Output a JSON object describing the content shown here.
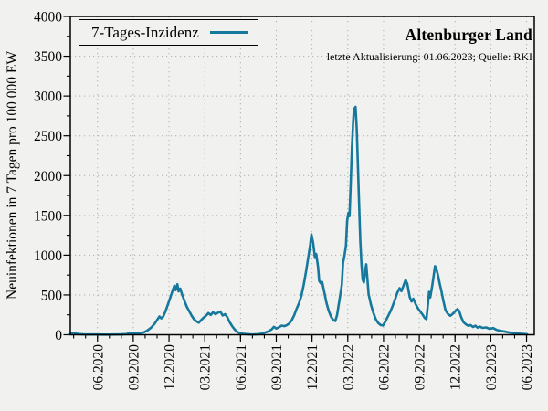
{
  "title": "Altenburger Land",
  "subtitle": "letzte Aktualisierung: 01.06.2023; Quelle: RKI",
  "legend": {
    "label": "7-Tages-Inzidenz"
  },
  "colors": {
    "line": "#15789c",
    "background": "#f1f1ef",
    "grid": "#b0b0b0",
    "frame": "#000000",
    "text": "#000000"
  },
  "chart_data": {
    "type": "line",
    "title": "Altenburger Land",
    "subtitle": "letzte Aktualisierung: 01.06.2023; Quelle: RKI",
    "xlabel": "",
    "ylabel": "Neuinfektionen in 7 Tagen pro 100 000 EW",
    "legend_entries": [
      "7-Tages-Inzidenz"
    ],
    "legend_position": "top-left",
    "grid": "dotted, at major ticks of both axes",
    "ylim": [
      0,
      4000
    ],
    "y_major_ticks": [
      0,
      500,
      1000,
      1500,
      2000,
      2500,
      3000,
      3500,
      4000
    ],
    "y_minor_tick_step": 250,
    "x_unit": "months since 2020-06-01",
    "xlim_t": [
      -2.28,
      36.65
    ],
    "x_minor_tick_step_months": 1,
    "x_tick_labels": [
      {
        "t": 0,
        "label": "06.2020"
      },
      {
        "t": 3,
        "label": "09.2020"
      },
      {
        "t": 6,
        "label": "12.2020"
      },
      {
        "t": 9,
        "label": "03.2021"
      },
      {
        "t": 12,
        "label": "06.2021"
      },
      {
        "t": 15,
        "label": "09.2021"
      },
      {
        "t": 18,
        "label": "12.2021"
      },
      {
        "t": 21,
        "label": "03.2022"
      },
      {
        "t": 24,
        "label": "06.2022"
      },
      {
        "t": 27,
        "label": "09.2022"
      },
      {
        "t": 30,
        "label": "12.2022"
      },
      {
        "t": 33,
        "label": "03.2023"
      },
      {
        "t": 36,
        "label": "06.2023"
      }
    ],
    "series": [
      {
        "name": "7-Tages-Inzidenz",
        "color": "#15789c",
        "points": [
          [
            -2.3,
            8
          ],
          [
            -2.15,
            20
          ],
          [
            -2.0,
            24
          ],
          [
            -1.8,
            14
          ],
          [
            -1.5,
            8
          ],
          [
            -1.2,
            5
          ],
          [
            -0.8,
            4
          ],
          [
            -0.4,
            3
          ],
          [
            0,
            3
          ],
          [
            0.5,
            2
          ],
          [
            1,
            2
          ],
          [
            1.5,
            3
          ],
          [
            2,
            5
          ],
          [
            2.4,
            8
          ],
          [
            2.7,
            18
          ],
          [
            3.0,
            22
          ],
          [
            3.3,
            16
          ],
          [
            3.6,
            22
          ],
          [
            3.9,
            30
          ],
          [
            4.2,
            55
          ],
          [
            4.5,
            90
          ],
          [
            4.8,
            140
          ],
          [
            5.0,
            185
          ],
          [
            5.2,
            230
          ],
          [
            5.35,
            205
          ],
          [
            5.5,
            225
          ],
          [
            5.7,
            290
          ],
          [
            5.9,
            375
          ],
          [
            6.1,
            465
          ],
          [
            6.3,
            555
          ],
          [
            6.45,
            615
          ],
          [
            6.55,
            560
          ],
          [
            6.7,
            635
          ],
          [
            6.8,
            545
          ],
          [
            6.95,
            580
          ],
          [
            7.1,
            505
          ],
          [
            7.3,
            425
          ],
          [
            7.5,
            350
          ],
          [
            7.7,
            295
          ],
          [
            7.9,
            240
          ],
          [
            8.1,
            195
          ],
          [
            8.3,
            168
          ],
          [
            8.5,
            152
          ],
          [
            8.7,
            185
          ],
          [
            8.9,
            215
          ],
          [
            9.1,
            238
          ],
          [
            9.3,
            272
          ],
          [
            9.5,
            248
          ],
          [
            9.7,
            282
          ],
          [
            9.9,
            258
          ],
          [
            10.1,
            276
          ],
          [
            10.3,
            292
          ],
          [
            10.5,
            242
          ],
          [
            10.7,
            258
          ],
          [
            10.9,
            218
          ],
          [
            11.1,
            155
          ],
          [
            11.3,
            108
          ],
          [
            11.5,
            68
          ],
          [
            11.7,
            38
          ],
          [
            11.9,
            22
          ],
          [
            12.2,
            13
          ],
          [
            12.5,
            8
          ],
          [
            12.8,
            5
          ],
          [
            13.1,
            4
          ],
          [
            13.4,
            7
          ],
          [
            13.7,
            12
          ],
          [
            14.0,
            24
          ],
          [
            14.3,
            40
          ],
          [
            14.6,
            65
          ],
          [
            14.8,
            100
          ],
          [
            15.0,
            78
          ],
          [
            15.2,
            92
          ],
          [
            15.45,
            115
          ],
          [
            15.7,
            108
          ],
          [
            15.9,
            122
          ],
          [
            16.1,
            142
          ],
          [
            16.3,
            185
          ],
          [
            16.5,
            245
          ],
          [
            16.7,
            325
          ],
          [
            16.9,
            395
          ],
          [
            17.1,
            485
          ],
          [
            17.3,
            625
          ],
          [
            17.5,
            795
          ],
          [
            17.7,
            985
          ],
          [
            17.85,
            1135
          ],
          [
            17.95,
            1260
          ],
          [
            18.1,
            1150
          ],
          [
            18.25,
            965
          ],
          [
            18.35,
            1015
          ],
          [
            18.5,
            855
          ],
          [
            18.6,
            675
          ],
          [
            18.75,
            645
          ],
          [
            18.85,
            662
          ],
          [
            19.0,
            555
          ],
          [
            19.2,
            408
          ],
          [
            19.4,
            300
          ],
          [
            19.6,
            225
          ],
          [
            19.8,
            182
          ],
          [
            19.95,
            172
          ],
          [
            20.1,
            245
          ],
          [
            20.3,
            430
          ],
          [
            20.5,
            630
          ],
          [
            20.6,
            905
          ],
          [
            20.7,
            975
          ],
          [
            20.85,
            1120
          ],
          [
            20.95,
            1430
          ],
          [
            21.05,
            1530
          ],
          [
            21.15,
            1490
          ],
          [
            21.25,
            1900
          ],
          [
            21.35,
            2340
          ],
          [
            21.45,
            2680
          ],
          [
            21.52,
            2845
          ],
          [
            21.58,
            2760
          ],
          [
            21.65,
            2865
          ],
          [
            21.75,
            2590
          ],
          [
            21.85,
            2120
          ],
          [
            21.95,
            1640
          ],
          [
            22.05,
            1180
          ],
          [
            22.15,
            880
          ],
          [
            22.25,
            690
          ],
          [
            22.35,
            655
          ],
          [
            22.45,
            790
          ],
          [
            22.55,
            885
          ],
          [
            22.65,
            695
          ],
          [
            22.75,
            510
          ],
          [
            22.95,
            375
          ],
          [
            23.15,
            275
          ],
          [
            23.35,
            195
          ],
          [
            23.55,
            148
          ],
          [
            23.75,
            122
          ],
          [
            23.95,
            116
          ],
          [
            24.15,
            165
          ],
          [
            24.35,
            225
          ],
          [
            24.55,
            285
          ],
          [
            24.75,
            355
          ],
          [
            24.95,
            435
          ],
          [
            25.15,
            525
          ],
          [
            25.35,
            585
          ],
          [
            25.5,
            548
          ],
          [
            25.7,
            625
          ],
          [
            25.85,
            688
          ],
          [
            26.0,
            638
          ],
          [
            26.2,
            475
          ],
          [
            26.35,
            418
          ],
          [
            26.5,
            452
          ],
          [
            26.7,
            382
          ],
          [
            26.9,
            328
          ],
          [
            27.1,
            288
          ],
          [
            27.3,
            248
          ],
          [
            27.45,
            212
          ],
          [
            27.6,
            196
          ],
          [
            27.72,
            378
          ],
          [
            27.82,
            540
          ],
          [
            27.92,
            468
          ],
          [
            28.1,
            625
          ],
          [
            28.32,
            862
          ],
          [
            28.45,
            815
          ],
          [
            28.58,
            742
          ],
          [
            28.72,
            638
          ],
          [
            28.85,
            555
          ],
          [
            29.0,
            438
          ],
          [
            29.2,
            308
          ],
          [
            29.4,
            262
          ],
          [
            29.6,
            238
          ],
          [
            29.8,
            262
          ],
          [
            30.0,
            292
          ],
          [
            30.2,
            322
          ],
          [
            30.35,
            298
          ],
          [
            30.5,
            228
          ],
          [
            30.7,
            158
          ],
          [
            30.9,
            132
          ],
          [
            31.1,
            112
          ],
          [
            31.3,
            122
          ],
          [
            31.5,
            98
          ],
          [
            31.7,
            114
          ],
          [
            31.9,
            88
          ],
          [
            32.1,
            102
          ],
          [
            32.3,
            86
          ],
          [
            32.6,
            92
          ],
          [
            32.9,
            74
          ],
          [
            33.2,
            84
          ],
          [
            33.5,
            60
          ],
          [
            33.8,
            48
          ],
          [
            34.1,
            42
          ],
          [
            34.4,
            32
          ],
          [
            34.7,
            25
          ],
          [
            35.0,
            20
          ],
          [
            35.3,
            15
          ],
          [
            35.6,
            11
          ],
          [
            35.9,
            8
          ],
          [
            36.05,
            6
          ]
        ]
      }
    ]
  }
}
